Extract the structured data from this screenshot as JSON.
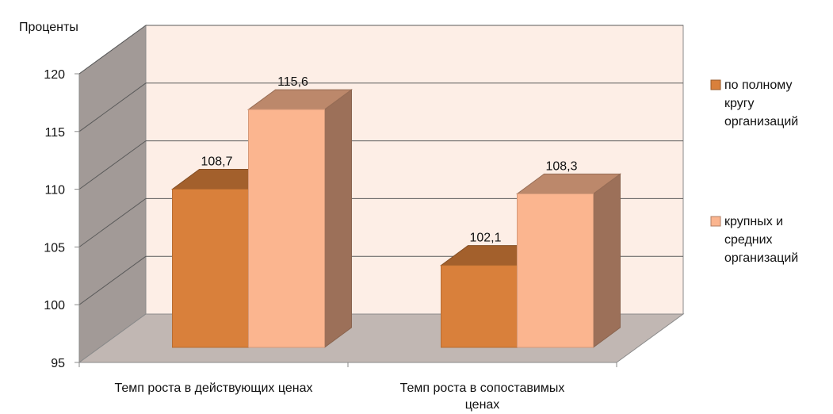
{
  "chart_data": {
    "type": "bar",
    "title": "",
    "ylabel": "Проценты",
    "xlabel": "",
    "ylim": [
      95,
      120
    ],
    "yticks": [
      95,
      100,
      105,
      110,
      115,
      120
    ],
    "grid": true,
    "legend_position": "right",
    "categories": [
      [
        "Темп роста в действующих ценах"
      ],
      [
        "Темп роста в сопоставимых",
        "ценах"
      ]
    ],
    "series": [
      {
        "name": [
          "по полному",
          "кругу",
          "организаций"
        ],
        "values": [
          108.7,
          102.1
        ],
        "labels": [
          "108,7",
          "102,1"
        ],
        "color": "#d9803b"
      },
      {
        "name": [
          "крупных и",
          "средних",
          "организаций"
        ],
        "values": [
          115.6,
          108.3
        ],
        "labels": [
          "115,6",
          "108,3"
        ],
        "color": "#fbb58f"
      }
    ]
  }
}
